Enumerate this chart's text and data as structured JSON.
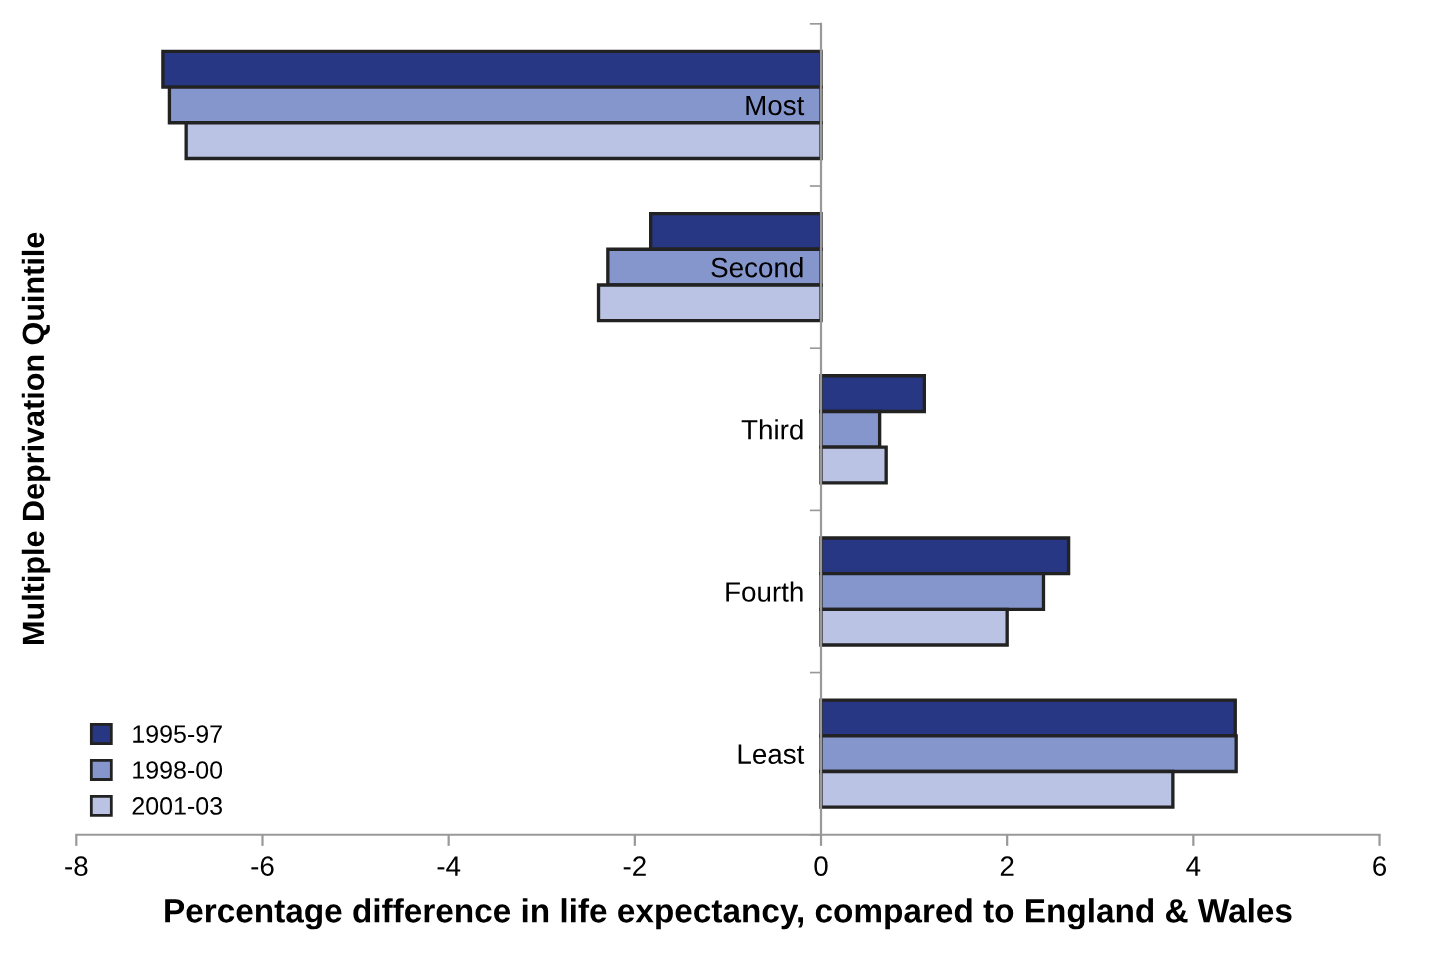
{
  "chart_data": {
    "type": "bar",
    "orientation": "horizontal",
    "xlabel": "Percentage difference in life expectancy, compared to England & Wales",
    "ylabel": "Multiple Deprivation Quintile",
    "categories": [
      "Most",
      "Second",
      "Third",
      "Fourth",
      "Least"
    ],
    "series": [
      {
        "name": "1995-97",
        "color": "#283783",
        "values": [
          -7.07,
          -1.83,
          1.11,
          2.66,
          4.45
        ]
      },
      {
        "name": "1998-00",
        "color": "#8596cc",
        "values": [
          -7.0,
          -2.29,
          0.63,
          2.39,
          4.46
        ]
      },
      {
        "name": "2001-03",
        "color": "#bac3e3",
        "values": [
          -6.82,
          -2.39,
          0.7,
          2.0,
          3.78
        ]
      }
    ],
    "xlim": [
      -8,
      6
    ],
    "xticks": [
      -8,
      -6,
      -4,
      -2,
      0,
      2,
      4,
      6
    ],
    "grid": false,
    "legend": "bottom left"
  }
}
